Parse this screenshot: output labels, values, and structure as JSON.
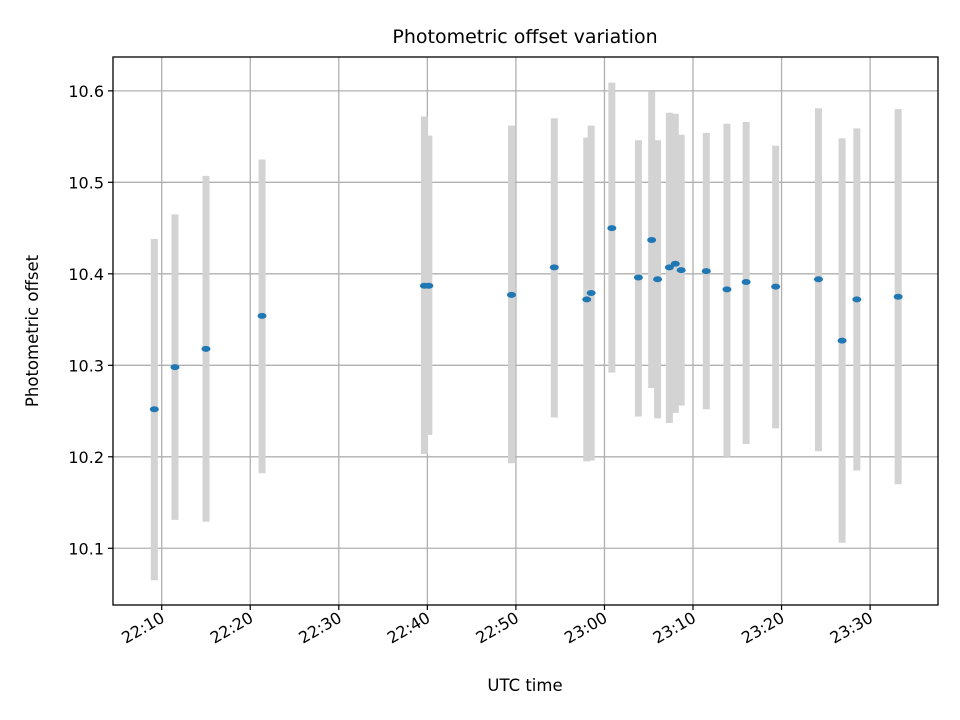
{
  "chart_data": {
    "type": "scatter",
    "title": "Photometric offset variation",
    "xlabel": "UTC time",
    "ylabel": "Photometric offset",
    "xlim": [
      "22:04:30",
      "23:37:40"
    ],
    "ylim": [
      10.038,
      10.637
    ],
    "grid": true,
    "x_ticks": [
      "22:10",
      "22:20",
      "22:30",
      "22:40",
      "22:50",
      "23:00",
      "23:10",
      "23:20",
      "23:30"
    ],
    "y_ticks": [
      "10.1",
      "10.2",
      "10.3",
      "10.4",
      "10.5",
      "10.6"
    ],
    "colors": {
      "point": "#1f77b4",
      "errorbar": "#d3d3d3",
      "grid": "#b0b0b0"
    },
    "series": [
      {
        "points": [
          {
            "x": "22:09:10",
            "y": 10.252,
            "lower": 10.065,
            "upper": 10.438
          },
          {
            "x": "22:11:30",
            "y": 10.298,
            "lower": 10.131,
            "upper": 10.465
          },
          {
            "x": "22:15:00",
            "y": 10.318,
            "lower": 10.129,
            "upper": 10.507
          },
          {
            "x": "22:21:20",
            "y": 10.354,
            "lower": 10.182,
            "upper": 10.525
          },
          {
            "x": "22:39:40",
            "y": 10.387,
            "lower": 10.203,
            "upper": 10.572
          },
          {
            "x": "22:40:10",
            "y": 10.387,
            "lower": 10.224,
            "upper": 10.551
          },
          {
            "x": "22:49:30",
            "y": 10.377,
            "lower": 10.193,
            "upper": 10.562
          },
          {
            "x": "22:54:20",
            "y": 10.407,
            "lower": 10.243,
            "upper": 10.57
          },
          {
            "x": "22:58:00",
            "y": 10.372,
            "lower": 10.195,
            "upper": 10.549
          },
          {
            "x": "22:58:30",
            "y": 10.379,
            "lower": 10.196,
            "upper": 10.562
          },
          {
            "x": "23:00:50",
            "y": 10.45,
            "lower": 10.292,
            "upper": 10.609
          },
          {
            "x": "23:03:50",
            "y": 10.396,
            "lower": 10.244,
            "upper": 10.546
          },
          {
            "x": "23:05:20",
            "y": 10.437,
            "lower": 10.275,
            "upper": 10.599
          },
          {
            "x": "23:06:00",
            "y": 10.394,
            "lower": 10.242,
            "upper": 10.546
          },
          {
            "x": "23:07:20",
            "y": 10.407,
            "lower": 10.237,
            "upper": 10.576
          },
          {
            "x": "23:08:00",
            "y": 10.411,
            "lower": 10.248,
            "upper": 10.575
          },
          {
            "x": "23:08:40",
            "y": 10.404,
            "lower": 10.256,
            "upper": 10.552
          },
          {
            "x": "23:11:30",
            "y": 10.403,
            "lower": 10.252,
            "upper": 10.554
          },
          {
            "x": "23:13:50",
            "y": 10.383,
            "lower": 10.2,
            "upper": 10.564
          },
          {
            "x": "23:16:00",
            "y": 10.391,
            "lower": 10.214,
            "upper": 10.566
          },
          {
            "x": "23:19:20",
            "y": 10.386,
            "lower": 10.231,
            "upper": 10.54
          },
          {
            "x": "23:24:10",
            "y": 10.394,
            "lower": 10.206,
            "upper": 10.581
          },
          {
            "x": "23:26:50",
            "y": 10.327,
            "lower": 10.106,
            "upper": 10.548
          },
          {
            "x": "23:28:30",
            "y": 10.372,
            "lower": 10.185,
            "upper": 10.559
          },
          {
            "x": "23:33:10",
            "y": 10.375,
            "lower": 10.17,
            "upper": 10.58
          }
        ]
      }
    ]
  }
}
